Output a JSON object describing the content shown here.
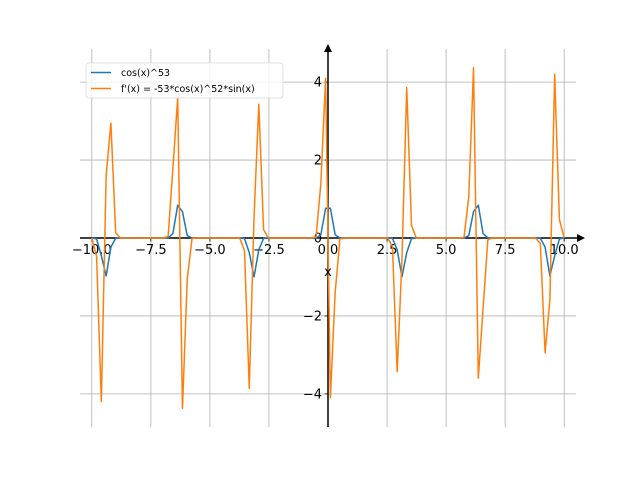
{
  "chart_data": {
    "type": "line",
    "title": "",
    "xlabel": "x",
    "ylabel": "",
    "xlim": [
      -10.5,
      10.5
    ],
    "ylim": [
      -4.85,
      4.85
    ],
    "x_ticks": [
      -10.0,
      -7.5,
      -5.0,
      -2.5,
      0.0,
      2.5,
      5.0,
      7.5,
      10.0
    ],
    "x_tick_labels": [
      "−10.0",
      "−7.5",
      "−5.0",
      "−2.5",
      "0.0",
      "2.5",
      "5.0",
      "7.5",
      "10.0"
    ],
    "y_ticks": [
      -4,
      -2,
      0,
      2,
      4
    ],
    "y_tick_labels": [
      "−4",
      "−2",
      "0",
      "2",
      "4"
    ],
    "grid": true,
    "legend_position": "top-left",
    "x_range": [
      -10,
      10
    ],
    "sample_count": 100,
    "series": [
      {
        "name": "cos(x)^53",
        "color": "#1f77b4",
        "expression": "cos(x)^53"
      },
      {
        "name": "f'(x) = -53*cos(x)^52*sin(x)",
        "color": "#ff7f0e",
        "expression": "-53*cos(x)^52*sin(x)"
      }
    ]
  }
}
